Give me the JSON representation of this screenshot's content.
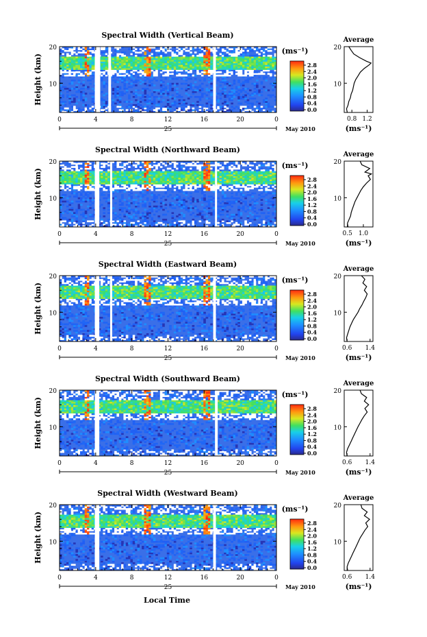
{
  "figure": {
    "xlabel": "Local Time"
  },
  "chart_data": [
    {
      "type": "heatmap",
      "title": "Spectral Width (Vertical Beam)",
      "ylabel": "Height (km)",
      "yticks": [
        "20",
        "10"
      ],
      "ylim": [
        2,
        20
      ],
      "xticks": [
        "0",
        "4",
        "8",
        "12",
        "16",
        "20",
        "0"
      ],
      "xlim": [
        0,
        24
      ],
      "date_day": "25",
      "date_label": "May 2010",
      "colorbar": {
        "unit": "(ms⁻¹)",
        "ticks": [
          "2.8",
          "2.4",
          "2.0",
          "1.6",
          "1.2",
          "0.8",
          "0.4",
          "0.0"
        ]
      },
      "gaps": [
        [
          3.9,
          4.5
        ],
        [
          5.4,
          5.7
        ],
        [
          17.0,
          17.3
        ]
      ],
      "profile": {
        "title": "Average",
        "xlabel": "(ms⁻¹)",
        "xticks": [
          "0.8",
          "1.2"
        ],
        "xlim": [
          0.6,
          1.35
        ],
        "yticks": [
          "20",
          "10"
        ],
        "points": [
          [
            0.68,
            2
          ],
          [
            0.66,
            3
          ],
          [
            0.7,
            4
          ],
          [
            0.72,
            5
          ],
          [
            0.76,
            6
          ],
          [
            0.78,
            7
          ],
          [
            0.82,
            8
          ],
          [
            0.84,
            9
          ],
          [
            0.86,
            10
          ],
          [
            0.9,
            11
          ],
          [
            0.96,
            12
          ],
          [
            1.02,
            13
          ],
          [
            1.12,
            14
          ],
          [
            1.25,
            15
          ],
          [
            1.3,
            15.5
          ],
          [
            1.18,
            16
          ],
          [
            1.0,
            17
          ],
          [
            0.85,
            18
          ],
          [
            0.78,
            19
          ],
          [
            0.72,
            20
          ]
        ]
      }
    },
    {
      "type": "heatmap",
      "title": "Spectral Width (Northward Beam)",
      "ylabel": "Height (km)",
      "yticks": [
        "20",
        "10"
      ],
      "ylim": [
        2,
        20
      ],
      "xticks": [
        "0",
        "4",
        "8",
        "12",
        "16",
        "20",
        "0"
      ],
      "xlim": [
        0,
        24
      ],
      "date_day": "25",
      "date_label": "May 2010",
      "colorbar": {
        "unit": "(ms⁻¹)",
        "ticks": [
          "2.8",
          "2.4",
          "2.0",
          "1.6",
          "1.2",
          "0.8",
          "0.4",
          "0.0"
        ]
      },
      "gaps": [
        [
          3.9,
          4.4
        ],
        [
          5.6,
          5.8
        ],
        [
          17.2,
          17.4
        ]
      ],
      "profile": {
        "title": "Average",
        "xlabel": "(ms⁻¹)",
        "xticks": [
          "0.5",
          "1.0"
        ],
        "xlim": [
          0.4,
          1.3
        ],
        "yticks": [
          "20",
          "10"
        ],
        "points": [
          [
            0.52,
            2
          ],
          [
            0.5,
            3
          ],
          [
            0.55,
            4
          ],
          [
            0.6,
            5
          ],
          [
            0.62,
            6
          ],
          [
            0.66,
            7
          ],
          [
            0.7,
            8
          ],
          [
            0.74,
            9
          ],
          [
            0.8,
            10
          ],
          [
            0.86,
            11
          ],
          [
            0.92,
            12
          ],
          [
            1.0,
            13
          ],
          [
            1.1,
            14
          ],
          [
            1.22,
            15
          ],
          [
            1.15,
            16
          ],
          [
            1.25,
            16.5
          ],
          [
            1.05,
            17
          ],
          [
            1.2,
            18
          ],
          [
            0.95,
            19
          ],
          [
            0.9,
            20
          ]
        ]
      }
    },
    {
      "type": "heatmap",
      "title": "Spectral Width (Eastward Beam)",
      "ylabel": "Height (km)",
      "yticks": [
        "20",
        "10"
      ],
      "ylim": [
        2,
        20
      ],
      "xticks": [
        "0",
        "4",
        "8",
        "12",
        "16",
        "20",
        "0"
      ],
      "xlim": [
        0,
        24
      ],
      "date_day": "25",
      "date_label": "May 2010",
      "colorbar": {
        "unit": "(ms⁻¹)",
        "ticks": [
          "2.8",
          "2.4",
          "2.0",
          "1.6",
          "1.2",
          "0.8",
          "0.4",
          "0.0"
        ]
      },
      "gaps": [
        [
          3.9,
          4.4
        ],
        [
          5.6,
          5.8
        ],
        [
          17.0,
          17.3
        ]
      ],
      "profile": {
        "title": "Average",
        "xlabel": "(ms⁻¹)",
        "xticks": [
          "0.6",
          "1.4"
        ],
        "xlim": [
          0.5,
          1.5
        ],
        "yticks": [
          "20",
          "10"
        ],
        "points": [
          [
            0.6,
            2
          ],
          [
            0.58,
            3
          ],
          [
            0.62,
            4
          ],
          [
            0.66,
            5
          ],
          [
            0.7,
            6
          ],
          [
            0.76,
            7
          ],
          [
            0.82,
            8
          ],
          [
            0.9,
            9
          ],
          [
            0.98,
            10
          ],
          [
            1.04,
            11
          ],
          [
            1.12,
            12
          ],
          [
            1.18,
            13
          ],
          [
            1.25,
            14
          ],
          [
            1.3,
            15
          ],
          [
            1.2,
            16
          ],
          [
            1.28,
            17
          ],
          [
            1.15,
            18
          ],
          [
            1.22,
            19
          ],
          [
            1.1,
            20
          ]
        ]
      }
    },
    {
      "type": "heatmap",
      "title": "Spectral Width (Southward Beam)",
      "ylabel": "Height (km)",
      "yticks": [
        "20",
        "10"
      ],
      "ylim": [
        2,
        20
      ],
      "xticks": [
        "0",
        "4",
        "8",
        "12",
        "16",
        "20",
        "0"
      ],
      "xlim": [
        0,
        24
      ],
      "date_day": "25",
      "date_label": "May 2010",
      "colorbar": {
        "unit": "(ms⁻¹)",
        "ticks": [
          "2.8",
          "2.4",
          "2.0",
          "1.6",
          "1.2",
          "0.8",
          "0.4",
          "0.0"
        ]
      },
      "gaps": [
        [
          3.9,
          4.4
        ],
        [
          17.2,
          17.5
        ]
      ],
      "profile": {
        "title": "Average",
        "xlabel": "(ms⁻¹)",
        "xticks": [
          "0.6",
          "1.4"
        ],
        "xlim": [
          0.5,
          1.5
        ],
        "yticks": [
          "20",
          "10"
        ],
        "points": [
          [
            0.6,
            2
          ],
          [
            0.58,
            3
          ],
          [
            0.62,
            4
          ],
          [
            0.68,
            5
          ],
          [
            0.74,
            6
          ],
          [
            0.8,
            7
          ],
          [
            0.86,
            8
          ],
          [
            0.92,
            9
          ],
          [
            0.98,
            10
          ],
          [
            1.05,
            11
          ],
          [
            1.12,
            12
          ],
          [
            1.2,
            13
          ],
          [
            1.3,
            14
          ],
          [
            1.22,
            15
          ],
          [
            1.35,
            16
          ],
          [
            1.2,
            17
          ],
          [
            1.28,
            18
          ],
          [
            1.1,
            19
          ],
          [
            1.05,
            20
          ]
        ]
      }
    },
    {
      "type": "heatmap",
      "title": "Spectral Width (Westward Beam)",
      "ylabel": "Height (km)",
      "yticks": [
        "20",
        "10"
      ],
      "ylim": [
        2,
        20
      ],
      "xticks": [
        "0",
        "4",
        "8",
        "12",
        "16",
        "20",
        "0"
      ],
      "xlim": [
        0,
        24
      ],
      "date_day": "25",
      "date_label": "May 2010",
      "colorbar": {
        "unit": "(ms⁻¹)",
        "ticks": [
          "2.8",
          "2.4",
          "2.0",
          "1.6",
          "1.2",
          "0.8",
          "0.4",
          "0.0"
        ]
      },
      "gaps": [
        [
          3.9,
          4.4
        ],
        [
          17.0,
          17.3
        ]
      ],
      "profile": {
        "title": "Average",
        "xlabel": "(ms⁻¹)",
        "xticks": [
          "0.6",
          "1.4"
        ],
        "xlim": [
          0.5,
          1.5
        ],
        "yticks": [
          "20",
          "10"
        ],
        "points": [
          [
            0.62,
            2
          ],
          [
            0.6,
            3
          ],
          [
            0.64,
            4
          ],
          [
            0.7,
            5
          ],
          [
            0.76,
            6
          ],
          [
            0.82,
            7
          ],
          [
            0.88,
            8
          ],
          [
            0.94,
            9
          ],
          [
            1.0,
            10
          ],
          [
            1.06,
            11
          ],
          [
            1.14,
            12
          ],
          [
            1.22,
            13
          ],
          [
            1.32,
            14
          ],
          [
            1.25,
            15
          ],
          [
            1.38,
            16
          ],
          [
            1.2,
            17
          ],
          [
            1.3,
            18
          ],
          [
            1.12,
            19
          ],
          [
            1.08,
            20
          ]
        ]
      }
    }
  ]
}
